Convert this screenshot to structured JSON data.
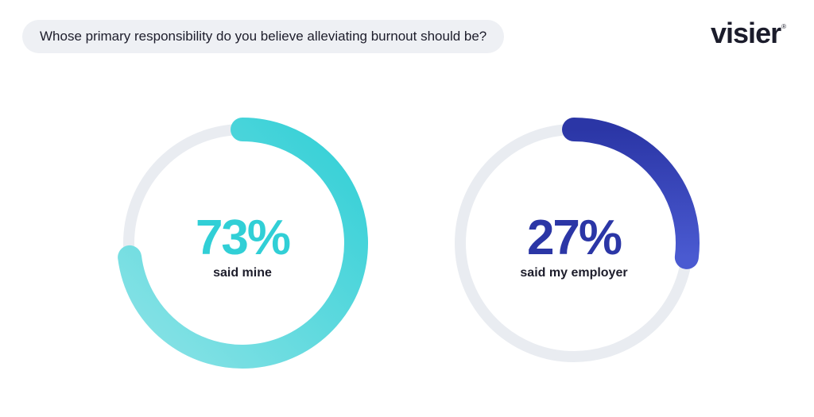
{
  "header": {
    "question": "Whose primary responsibility do you believe alleviating burnout should be?"
  },
  "logo": {
    "wordmark": "visier",
    "mark": "®"
  },
  "colors": {
    "track": "#e9ecf1",
    "mine_start": "#31cfd6",
    "mine_end": "#8be3e6",
    "employer_start": "#2b36a6",
    "employer_end": "#4a5ad1",
    "text_dark": "#1d1d2b"
  },
  "chart_data": [
    {
      "type": "pie",
      "style": "donut",
      "values": [
        73,
        27
      ],
      "categories": [
        "said mine",
        "remainder"
      ],
      "highlight_value": "73%",
      "caption": "said mine"
    },
    {
      "type": "pie",
      "style": "donut",
      "values": [
        27,
        73
      ],
      "categories": [
        "said my employer",
        "remainder"
      ],
      "highlight_value": "27%",
      "caption": "said my employer"
    }
  ]
}
